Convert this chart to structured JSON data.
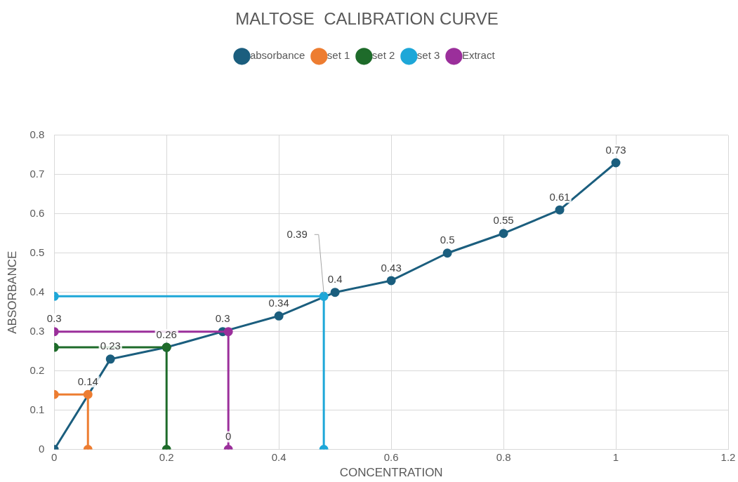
{
  "chart_data": {
    "type": "line",
    "title": "MALTOSE  CALIBRATION CURVE",
    "xlabel": "CONCENTRATION",
    "ylabel": "ABSORBANCE",
    "xlim": [
      0,
      1.2
    ],
    "xticks": [
      0,
      0.2,
      0.4,
      0.6,
      0.8,
      1,
      1.2
    ],
    "ylim": [
      0,
      0.8
    ],
    "yticks": [
      0,
      0.1,
      0.2,
      0.3,
      0.4,
      0.5,
      0.6,
      0.7,
      0.8
    ],
    "grid": true,
    "legend": "top",
    "marker": "circle",
    "line_style": "solid",
    "series": [
      {
        "name": "absorbance",
        "color": "#1b5e7e",
        "x": [
          0,
          0.1,
          0.2,
          0.3,
          0.4,
          0.5,
          0.6,
          0.7,
          0.8,
          0.9,
          1
        ],
        "values": [
          0,
          0.23,
          0.26,
          0.3,
          0.34,
          0.4,
          0.43,
          0.5,
          0.55,
          0.61,
          0.73
        ],
        "value_labels": [
          null,
          "0.23",
          "0.26",
          "0.3",
          "0.34",
          "0.4",
          "0.43",
          "0.5",
          "0.55",
          "0.61",
          "0.73"
        ]
      },
      {
        "name": "set 1",
        "color": "#ed7d31",
        "x": [
          0,
          0.06,
          0.06
        ],
        "values": [
          0.14,
          0.14,
          0
        ],
        "value_labels": [
          null,
          "0.14",
          null
        ]
      },
      {
        "name": "set 2",
        "color": "#1e6b2a",
        "x": [
          0,
          0.2,
          0.2
        ],
        "values": [
          0.26,
          0.26,
          0
        ]
      },
      {
        "name": "set 3",
        "color": "#1ea7d8",
        "x": [
          0,
          0.48,
          0.48
        ],
        "values": [
          0.39,
          0.39,
          0
        ],
        "value_labels": [
          null,
          "0.39",
          null
        ]
      },
      {
        "name": "Extract",
        "color": "#9b2f9b",
        "x": [
          0,
          0.31,
          0.31
        ],
        "values": [
          0.3,
          0.3,
          0
        ],
        "value_labels": [
          "0.3",
          null,
          "0"
        ]
      }
    ]
  }
}
